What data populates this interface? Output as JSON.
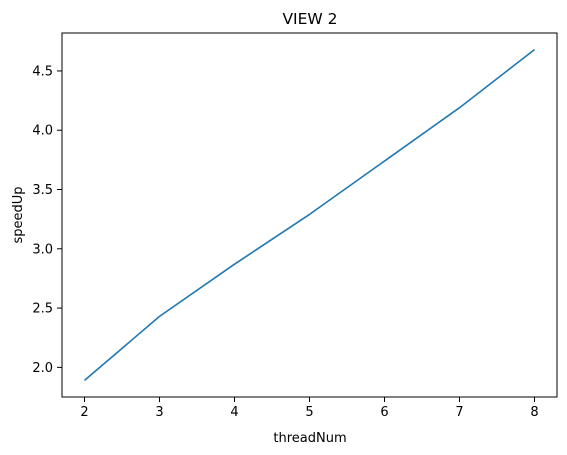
{
  "chart_data": {
    "type": "line",
    "title": "VIEW 2",
    "xlabel": "threadNum",
    "ylabel": "speedUp",
    "x": [
      2,
      3,
      4,
      5,
      6,
      7,
      8
    ],
    "series": [
      {
        "values": [
          1.89,
          2.43,
          2.87,
          3.29,
          3.74,
          4.19,
          4.68
        ],
        "color": "#1f77b4"
      }
    ],
    "xlim": [
      1.7,
      8.3
    ],
    "ylim": [
      1.75,
      4.82
    ],
    "xticks": [
      "2",
      "3",
      "4",
      "5",
      "6",
      "7",
      "8"
    ],
    "yticks": [
      "2.0",
      "2.5",
      "3.0",
      "3.5",
      "4.0",
      "4.5"
    ],
    "grid": false,
    "legend": "none"
  }
}
